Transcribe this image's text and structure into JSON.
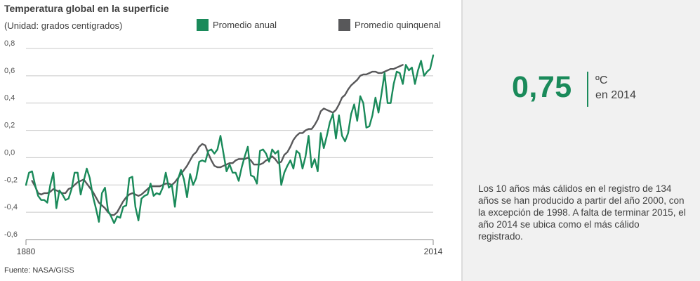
{
  "header": {
    "title": "Temperatura global en la superficie",
    "subtitle": "(Unidad: grados centígrados)"
  },
  "legend": {
    "annual_label": "Promedio anual",
    "five_year_label": "Promedio quinquenal"
  },
  "source": "Fuente: NASA/GISS",
  "highlight": {
    "value": "0,75",
    "unit": "ºC",
    "period": "en 2014",
    "note": "Los 10 años más cálidos en el registro de 134 años se han producido a partir del año 2000, con la excepción de 1998. A falta de terminar 2015, el año 2014 se ubica como el más cálido registrado."
  },
  "colors": {
    "annual": "#1a8a5a",
    "five_year": "#58585a",
    "grid": "#c9c9c9",
    "axis": "#888888",
    "accent": "#1a8a5a",
    "panel_bg": "#f1f1f1"
  },
  "chart_data": {
    "type": "line",
    "x_start": 1880,
    "x_end": 2014,
    "xticks": [
      "1880",
      "2014"
    ],
    "ylim": [
      -0.6,
      0.8
    ],
    "yticks": [
      "0,8",
      "0,6",
      "0,4",
      "0,2",
      "0,0",
      "-0,2",
      "-0,4",
      "-0,6"
    ],
    "grid": "horizontal",
    "series": [
      {
        "name": "Promedio anual",
        "values": [
          -0.2,
          -0.11,
          -0.1,
          -0.2,
          -0.28,
          -0.31,
          -0.31,
          -0.33,
          -0.2,
          -0.11,
          -0.37,
          -0.24,
          -0.27,
          -0.31,
          -0.3,
          -0.23,
          -0.11,
          -0.11,
          -0.27,
          -0.17,
          -0.08,
          -0.15,
          -0.28,
          -0.37,
          -0.47,
          -0.26,
          -0.22,
          -0.39,
          -0.43,
          -0.48,
          -0.43,
          -0.44,
          -0.36,
          -0.35,
          -0.15,
          -0.14,
          -0.36,
          -0.46,
          -0.3,
          -0.28,
          -0.27,
          -0.19,
          -0.28,
          -0.26,
          -0.27,
          -0.22,
          -0.11,
          -0.22,
          -0.2,
          -0.36,
          -0.16,
          -0.09,
          -0.16,
          -0.29,
          -0.12,
          -0.2,
          -0.15,
          -0.03,
          -0.02,
          -0.03,
          0.05,
          0.06,
          0.03,
          0.06,
          0.16,
          0.03,
          -0.1,
          -0.05,
          -0.11,
          -0.11,
          -0.17,
          -0.07,
          0.01,
          0.08,
          -0.13,
          -0.14,
          -0.19,
          0.05,
          0.06,
          0.03,
          -0.03,
          0.06,
          0.03,
          0.05,
          -0.2,
          -0.11,
          -0.06,
          -0.02,
          -0.08,
          0.05,
          0.03,
          -0.08,
          0.01,
          0.16,
          -0.07,
          -0.01,
          -0.1,
          0.18,
          0.07,
          0.16,
          0.26,
          0.32,
          0.14,
          0.31,
          0.16,
          0.12,
          0.18,
          0.32,
          0.39,
          0.27,
          0.45,
          0.4,
          0.22,
          0.23,
          0.31,
          0.44,
          0.33,
          0.47,
          0.62,
          0.4,
          0.4,
          0.54,
          0.63,
          0.62,
          0.54,
          0.68,
          0.64,
          0.66,
          0.54,
          0.64,
          0.71,
          0.6,
          0.63,
          0.65,
          0.75
        ],
        "note": "Each annual value is approximate, read off the chart."
      },
      {
        "name": "Promedio quinquenal",
        "x_start": 1882,
        "values": [
          -0.17,
          -0.21,
          -0.26,
          -0.27,
          -0.26,
          -0.26,
          -0.25,
          -0.23,
          -0.24,
          -0.25,
          -0.26,
          -0.26,
          -0.23,
          -0.22,
          -0.2,
          -0.18,
          -0.17,
          -0.16,
          -0.19,
          -0.22,
          -0.25,
          -0.29,
          -0.33,
          -0.35,
          -0.37,
          -0.4,
          -0.42,
          -0.42,
          -0.4,
          -0.36,
          -0.32,
          -0.29,
          -0.27,
          -0.26,
          -0.27,
          -0.28,
          -0.27,
          -0.25,
          -0.23,
          -0.21,
          -0.21,
          -0.21,
          -0.21,
          -0.2,
          -0.19,
          -0.19,
          -0.2,
          -0.18,
          -0.15,
          -0.12,
          -0.09,
          -0.06,
          -0.02,
          0.02,
          0.04,
          0.08,
          0.1,
          0.09,
          0.03,
          -0.02,
          -0.06,
          -0.07,
          -0.07,
          -0.06,
          -0.05,
          -0.04,
          -0.04,
          -0.02,
          -0.01,
          -0.01,
          -0.01,
          0.0,
          -0.02,
          -0.05,
          -0.05,
          -0.05,
          -0.04,
          -0.02,
          -0.01,
          0.01,
          -0.01,
          -0.04,
          -0.03,
          0.02,
          0.04,
          0.08,
          0.13,
          0.16,
          0.18,
          0.18,
          0.2,
          0.21,
          0.21,
          0.24,
          0.28,
          0.34,
          0.36,
          0.35,
          0.34,
          0.33,
          0.35,
          0.39,
          0.44,
          0.46,
          0.5,
          0.53,
          0.55,
          0.57,
          0.6,
          0.61,
          0.61,
          0.62,
          0.63,
          0.63,
          0.62,
          0.62,
          0.63,
          0.64,
          0.65,
          0.65,
          0.66,
          0.67,
          0.68
        ]
      }
    ]
  }
}
